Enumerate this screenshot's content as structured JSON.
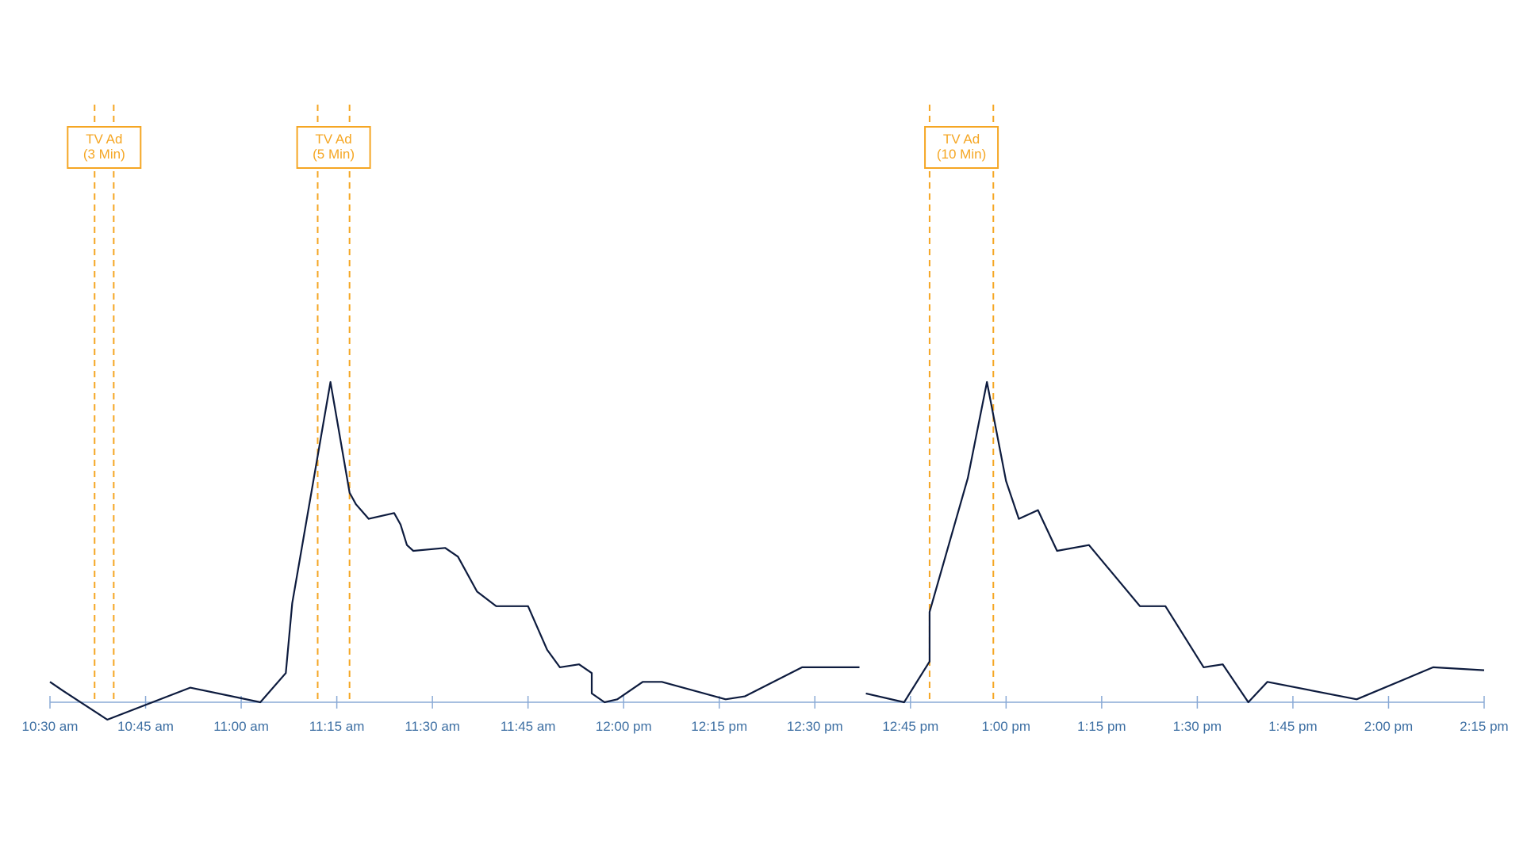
{
  "colors": {
    "line": "#0d1b3e",
    "axis": "#8aaad6",
    "tick_label": "#3d6fa3",
    "ad": "#f5a623",
    "background": "#ffffff"
  },
  "chart_data": {
    "type": "line",
    "title": "",
    "xlabel": "",
    "ylabel": "",
    "x_unit": "time of day",
    "x_ticks": [
      "10:30 am",
      "10:45 am",
      "11:00 am",
      "11:15 am",
      "11:30 am",
      "11:45 am",
      "12:00 pm",
      "12:15 pm",
      "12:30 pm",
      "12:45 pm",
      "1:00 pm",
      "1:15 pm",
      "1:30 pm",
      "1:45 pm",
      "2:00 pm",
      "2:15 pm"
    ],
    "xlim": [
      "10:30 am",
      "2:15 pm"
    ],
    "ylim": [
      -6,
      110
    ],
    "y_axis_shown": false,
    "grid": false,
    "legend": "none",
    "series": [
      {
        "segment": 1,
        "points": [
          {
            "x": "10:30 am",
            "y": 7
          },
          {
            "x": "10:32 am",
            "y": 4
          },
          {
            "x": "10:39 am",
            "y": -6
          },
          {
            "x": "10:52 am",
            "y": 5
          },
          {
            "x": "11:03 am",
            "y": 0
          },
          {
            "x": "11:07 am",
            "y": 10
          },
          {
            "x": "11:08 am",
            "y": 34
          },
          {
            "x": "11:14 am",
            "y": 110
          },
          {
            "x": "11:17 am",
            "y": 72
          },
          {
            "x": "11:18 am",
            "y": 68
          },
          {
            "x": "11:20 am",
            "y": 63
          },
          {
            "x": "11:24 am",
            "y": 65
          },
          {
            "x": "11:25 am",
            "y": 61
          },
          {
            "x": "11:26 am",
            "y": 54
          },
          {
            "x": "11:27 am",
            "y": 52
          },
          {
            "x": "11:32 am",
            "y": 53
          },
          {
            "x": "11:34 am",
            "y": 50
          },
          {
            "x": "11:37 am",
            "y": 38
          },
          {
            "x": "11:40 am",
            "y": 33
          },
          {
            "x": "11:45 am",
            "y": 33
          },
          {
            "x": "11:48 am",
            "y": 18
          },
          {
            "x": "11:50 am",
            "y": 12
          },
          {
            "x": "11:53 am",
            "y": 13
          },
          {
            "x": "11:55 am",
            "y": 10
          },
          {
            "x": "11:55 am",
            "y": 3
          },
          {
            "x": "11:57 am",
            "y": 0
          },
          {
            "x": "11:59 am",
            "y": 1
          },
          {
            "x": "12:03 pm",
            "y": 7
          },
          {
            "x": "12:06 pm",
            "y": 7
          },
          {
            "x": "12:16 pm",
            "y": 1
          },
          {
            "x": "12:19 pm",
            "y": 2
          },
          {
            "x": "12:28 pm",
            "y": 12
          },
          {
            "x": "12:37 pm",
            "y": 12
          }
        ]
      },
      {
        "segment": 2,
        "points": [
          {
            "x": "12:38 pm",
            "y": 3
          },
          {
            "x": "12:44 pm",
            "y": 0
          },
          {
            "x": "12:48 pm",
            "y": 14
          },
          {
            "x": "12:48 pm",
            "y": 31
          },
          {
            "x": "12:54 pm",
            "y": 77
          },
          {
            "x": "12:57 pm",
            "y": 110
          },
          {
            "x": "1:00 pm",
            "y": 76
          },
          {
            "x": "1:02 pm",
            "y": 63
          },
          {
            "x": "1:05 pm",
            "y": 66
          },
          {
            "x": "1:08 pm",
            "y": 52
          },
          {
            "x": "1:13 pm",
            "y": 54
          },
          {
            "x": "1:21 pm",
            "y": 33
          },
          {
            "x": "1:25 pm",
            "y": 33
          },
          {
            "x": "1:31 pm",
            "y": 12
          },
          {
            "x": "1:34 pm",
            "y": 13
          },
          {
            "x": "1:38 pm",
            "y": 0
          },
          {
            "x": "1:41 pm",
            "y": 7
          },
          {
            "x": "1:55 pm",
            "y": 1
          },
          {
            "x": "2:07 pm",
            "y": 12
          },
          {
            "x": "2:15 pm",
            "y": 11
          }
        ]
      }
    ],
    "annotations": [
      {
        "label_lines": [
          "TV Ad",
          "(3 Min)"
        ],
        "start": "10:37 am",
        "end": "10:40 am"
      },
      {
        "label_lines": [
          "TV Ad",
          "(5 Min)"
        ],
        "start": "11:12 am",
        "end": "11:17 am"
      },
      {
        "label_lines": [
          "TV Ad",
          "(10 Min)"
        ],
        "start": "12:48 pm",
        "end": "12:58 pm"
      }
    ]
  }
}
